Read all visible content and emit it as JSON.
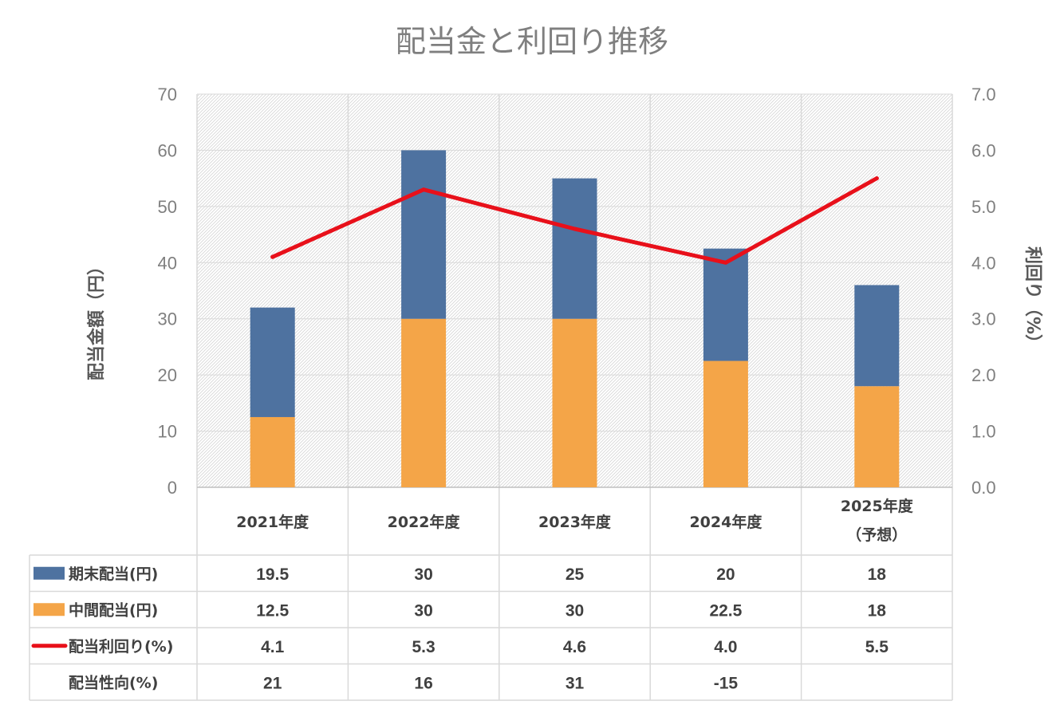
{
  "chart_data": {
    "type": "bar",
    "title": "配当金と利回り推移",
    "ylabel": "配当金額（円）",
    "y2label": "利回り（%）",
    "ylim": [
      0,
      70
    ],
    "y2lim": [
      0,
      7
    ],
    "yticks": [
      "0",
      "10",
      "20",
      "30",
      "40",
      "50",
      "60",
      "70"
    ],
    "y2ticks": [
      "0.0",
      "1.0",
      "2.0",
      "3.0",
      "4.0",
      "5.0",
      "6.0",
      "7.0"
    ],
    "categories": [
      [
        "2021年度"
      ],
      [
        "2022年度"
      ],
      [
        "2023年度"
      ],
      [
        "2024年度"
      ],
      [
        "2025年度",
        "（予想）"
      ]
    ],
    "stacked": true,
    "grid": true,
    "series": [
      {
        "name": "中間配当(円)",
        "type": "bar",
        "axis": "left",
        "color": "#f4a548",
        "values": [
          12.5,
          30,
          30,
          22.5,
          18
        ],
        "labels": [
          "12.5",
          "30",
          "30",
          "22.5",
          "18"
        ]
      },
      {
        "name": "期末配当(円)",
        "type": "bar",
        "axis": "left",
        "color": "#4e72a0",
        "values": [
          19.5,
          30,
          25,
          20,
          18
        ],
        "labels": [
          "19.5",
          "30",
          "25",
          "20",
          "18"
        ]
      },
      {
        "name": "配当利回り(%)",
        "type": "line",
        "axis": "right",
        "color": "#e8101a",
        "values": [
          4.1,
          5.3,
          4.6,
          4.0,
          5.5
        ],
        "labels": [
          "4.1",
          "5.3",
          "4.6",
          "4.0",
          "5.5"
        ]
      }
    ],
    "extra_rows": [
      {
        "name": "配当性向(%)",
        "labels": [
          "21",
          "16",
          "31",
          "-15",
          ""
        ]
      }
    ],
    "table_row_order": [
      "期末配当(円)",
      "中間配当(円)",
      "配当利回り(%)",
      "配当性向(%)"
    ],
    "legend": "data-table"
  }
}
